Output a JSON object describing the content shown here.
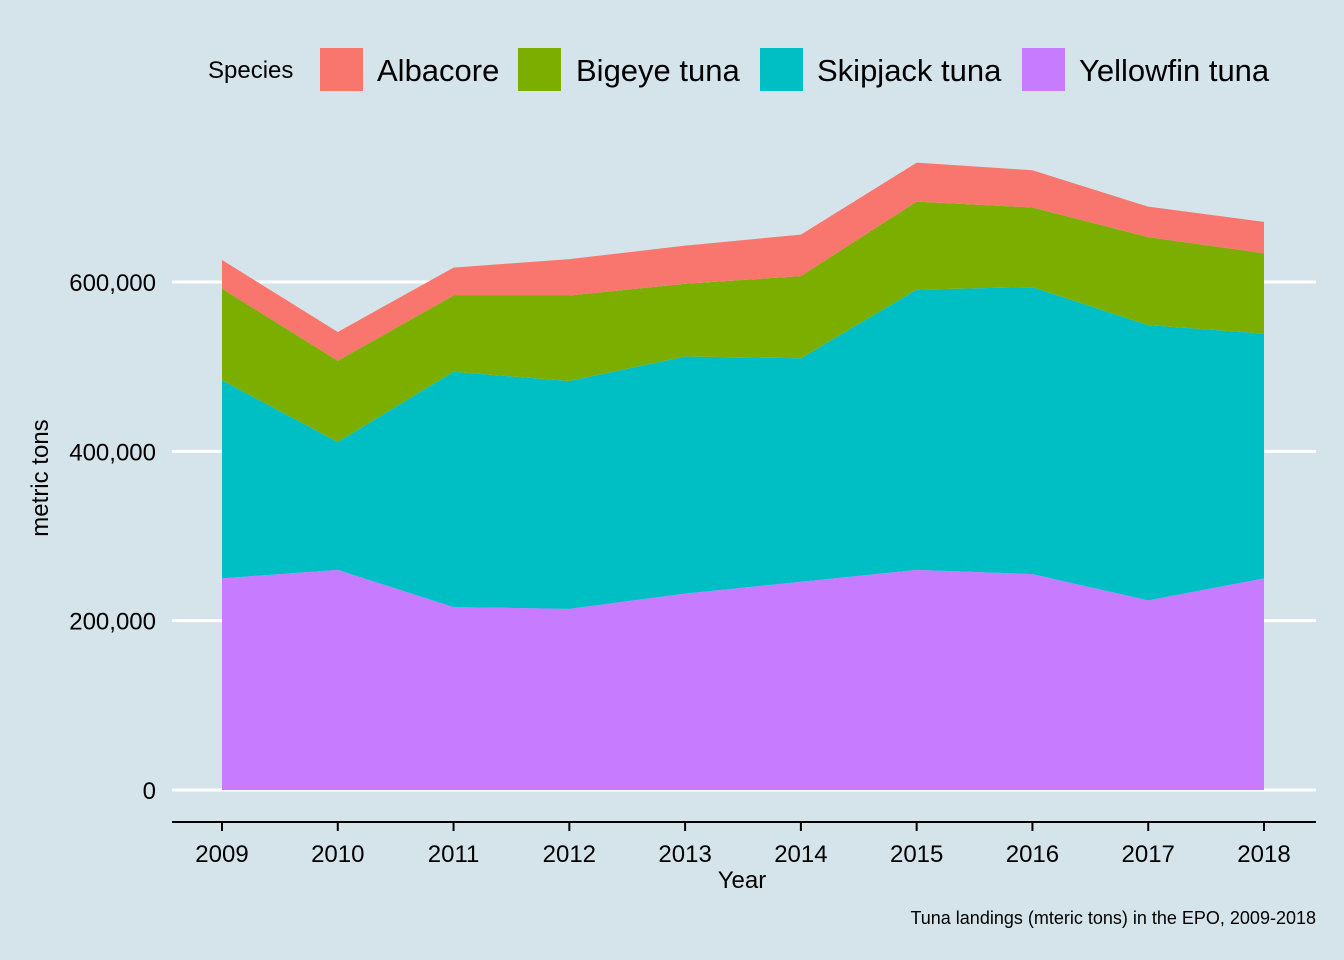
{
  "chart_data": {
    "type": "area",
    "stacked": true,
    "x": [
      2009,
      2010,
      2011,
      2012,
      2013,
      2014,
      2015,
      2016,
      2017,
      2018
    ],
    "x_tick_labels": [
      "2009",
      "2010",
      "2011",
      "2012",
      "2013",
      "2014",
      "2015",
      "2016",
      "2017",
      "2018"
    ],
    "xlabel": "Year",
    "ylabel": "metric tons",
    "ylim": [
      0,
      900000
    ],
    "y_ticks": [
      0,
      200000,
      400000,
      600000
    ],
    "y_tick_labels": [
      "0",
      "200,000",
      "400,000",
      "600,000"
    ],
    "grid": "horizontal-major",
    "legend": {
      "title": "Species",
      "position": "top"
    },
    "caption": "Tuna landings (mteric tons) in the EPO, 2009-2018",
    "series": [
      {
        "name": "Albacore",
        "color": "#f8766d",
        "values": [
          34000,
          34000,
          33000,
          43000,
          45000,
          49000,
          46000,
          44000,
          36000,
          37000
        ]
      },
      {
        "name": "Bigeye tuna",
        "color": "#7cae00",
        "values": [
          108000,
          96000,
          90000,
          101000,
          86000,
          97000,
          104000,
          94000,
          104000,
          95000
        ]
      },
      {
        "name": "Skipjack tuna",
        "color": "#00bfc4",
        "values": [
          234000,
          151000,
          278000,
          269000,
          280000,
          264000,
          331000,
          339000,
          325000,
          289000
        ]
      },
      {
        "name": "Yellowfin tuna",
        "color": "#c77cff",
        "values": [
          250000,
          260000,
          216000,
          214000,
          232000,
          246000,
          260000,
          255000,
          224000,
          250000
        ]
      }
    ]
  }
}
